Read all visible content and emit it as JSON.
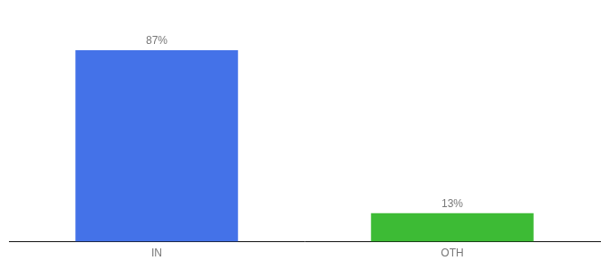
{
  "chart_data": {
    "type": "bar",
    "categories": [
      "IN",
      "OTH"
    ],
    "values": [
      87,
      13
    ],
    "value_labels": [
      "87%",
      "13%"
    ],
    "colors": [
      "#4472e8",
      "#3dbb35"
    ],
    "ylim": [
      0,
      100
    ],
    "grid": false,
    "data_labels": true,
    "tick_labels": "x"
  }
}
